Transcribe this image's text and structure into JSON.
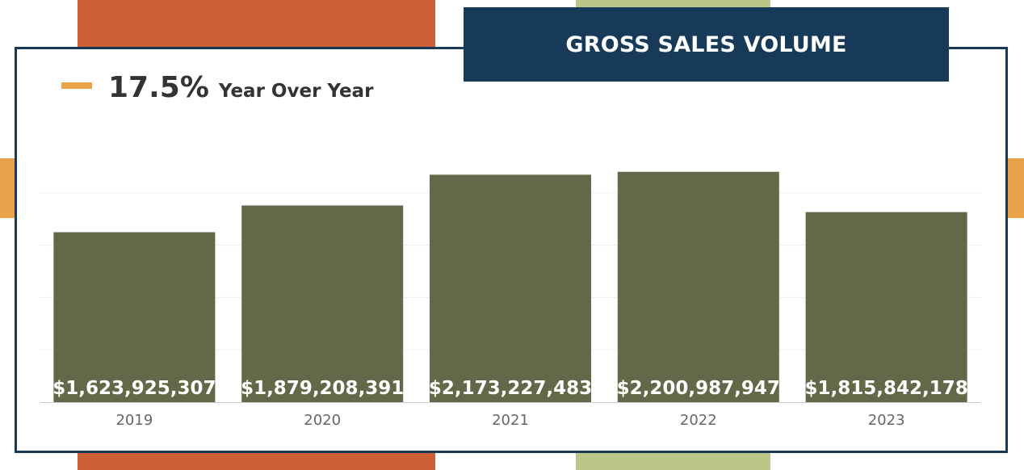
{
  "header": {
    "title": "GROSS SALES VOLUME"
  },
  "kpi": {
    "value": "17.5%",
    "label": "Year Over Year"
  },
  "colors": {
    "bar": "#636848",
    "frame": "#173a58",
    "accent_orange": "#cd5f37",
    "accent_green": "#bcc787",
    "accent_gold": "#e8a24a"
  },
  "chart_data": {
    "type": "bar",
    "title": "GROSS SALES VOLUME",
    "categories": [
      "2019",
      "2020",
      "2021",
      "2022",
      "2023"
    ],
    "values": [
      1623925307,
      1879208391,
      2173227483,
      2200987947,
      1815842178
    ],
    "data_labels": [
      "$1,623,925,307",
      "$1,879,208,391",
      "$2,173,227,483",
      "$2,200,987,947",
      "$1,815,842,178"
    ],
    "xlabel": "",
    "ylabel": "",
    "ylim": [
      0,
      2500000000
    ],
    "grid": true,
    "legend": "none"
  }
}
